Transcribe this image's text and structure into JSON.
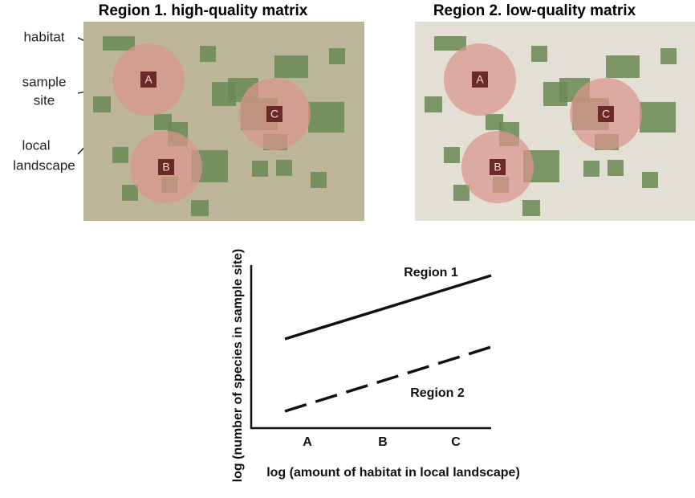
{
  "regions": [
    {
      "title": "Region 1. high-quality matrix",
      "sites": [
        "A",
        "B",
        "C"
      ]
    },
    {
      "title": "Region 2. low-quality matrix",
      "sites": [
        "A",
        "B",
        "C"
      ]
    }
  ],
  "legend_labels": {
    "habitat": "habitat",
    "sample_site": [
      "sample",
      "site"
    ],
    "local_landscape": [
      "local",
      "landscape"
    ]
  },
  "graph": {
    "series_labels": [
      "Region 1",
      "Region 2"
    ],
    "x_categories": [
      "A",
      "B",
      "C"
    ],
    "x_axis_title": "log (amount of habitat in local landscape)",
    "y_axis_title": "log (number of species in sample site)"
  }
}
